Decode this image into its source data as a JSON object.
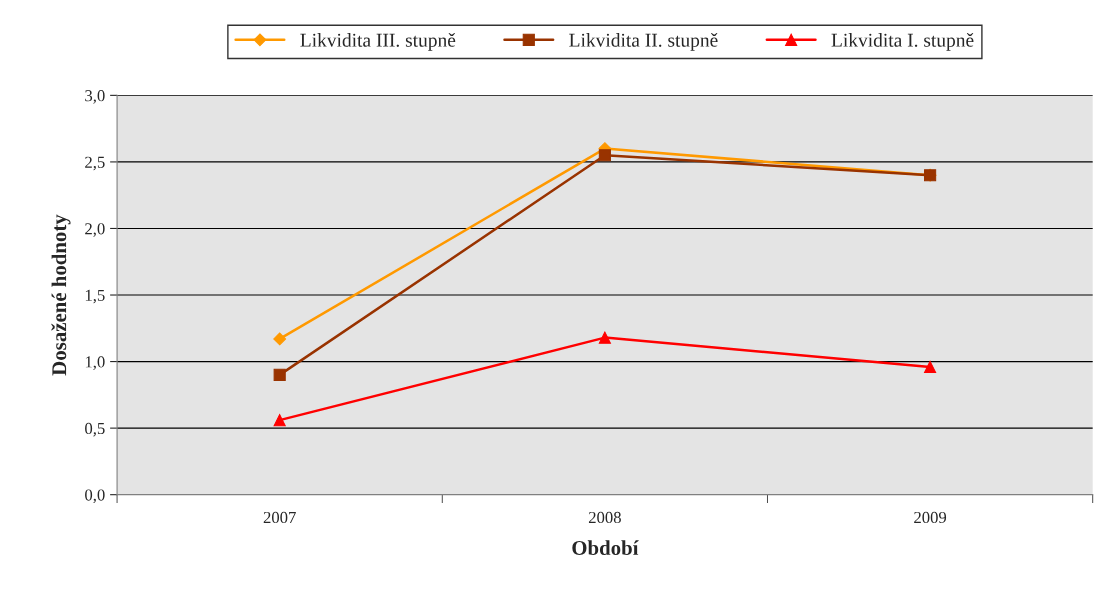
{
  "chart_data": {
    "type": "line",
    "xlabel": "Období",
    "ylabel": "Dosažené hodnoty",
    "categories": [
      "2007",
      "2008",
      "2009"
    ],
    "series": [
      {
        "name": "Likvidita III. stupně",
        "color": "#ff9900",
        "marker": "diamond",
        "values": [
          1.17,
          2.6,
          2.4
        ]
      },
      {
        "name": "Likvidita II. stupně",
        "color": "#993300",
        "marker": "square",
        "values": [
          0.9,
          2.55,
          2.4
        ]
      },
      {
        "name": "Likvidita I. stupně",
        "color": "#ff0000",
        "marker": "triangle",
        "values": [
          0.56,
          1.18,
          0.96
        ]
      }
    ],
    "ylim": [
      0,
      3
    ],
    "yticks": [
      {
        "value": 0,
        "label": "0,0"
      },
      {
        "value": 0.5,
        "label": "0,5"
      },
      {
        "value": 1,
        "label": "1,0"
      },
      {
        "value": 1.5,
        "label": "1,5"
      },
      {
        "value": 2,
        "label": "2,0"
      },
      {
        "value": 2.5,
        "label": "2,5"
      },
      {
        "value": 3,
        "label": "3,0"
      }
    ],
    "grid": "y",
    "legend": "top"
  }
}
